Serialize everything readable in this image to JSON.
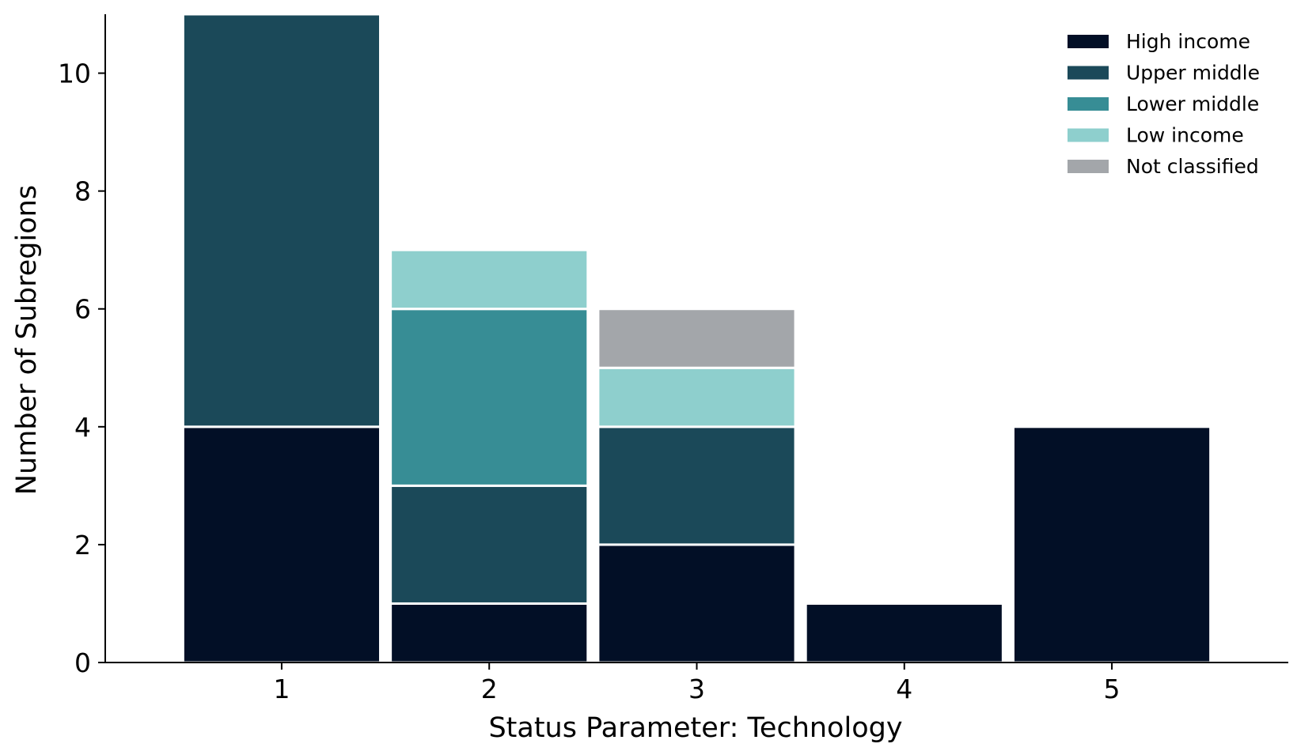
{
  "chart_data": {
    "type": "bar",
    "stacked": true,
    "categories": [
      "1",
      "2",
      "3",
      "4",
      "5"
    ],
    "series": [
      {
        "name": "High income",
        "color": "#020f26",
        "values": [
          4,
          1,
          2,
          1,
          4
        ]
      },
      {
        "name": "Upper middle",
        "color": "#1b4959",
        "values": [
          7,
          2,
          2,
          0,
          0
        ]
      },
      {
        "name": "Lower middle",
        "color": "#378d95",
        "values": [
          0,
          3,
          0,
          0,
          0
        ]
      },
      {
        "name": "Low income",
        "color": "#8ecfcd",
        "values": [
          0,
          1,
          1,
          0,
          0
        ]
      },
      {
        "name": "Not classified",
        "color": "#a3a6aa",
        "values": [
          0,
          0,
          1,
          0,
          0
        ]
      }
    ],
    "xlabel": "Status Parameter: Technology",
    "ylabel": "Number of Subregions",
    "ylim": [
      0,
      11
    ],
    "yticks": [
      0,
      2,
      4,
      6,
      8,
      10
    ],
    "grid": false,
    "legend_position": "top-right"
  }
}
